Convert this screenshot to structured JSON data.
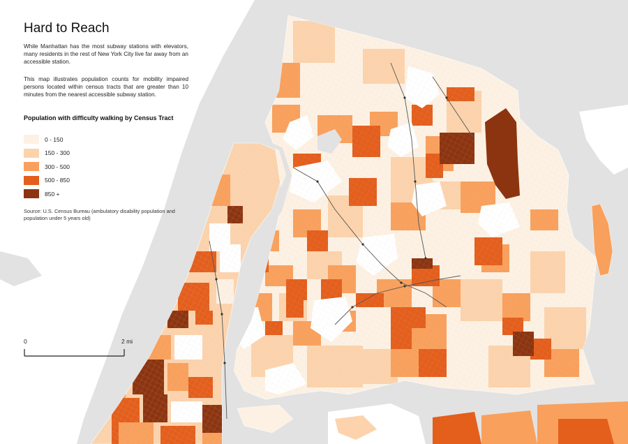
{
  "title": "Hard to Reach",
  "intro": "While Manhattan has the most subway stations with elevators, many residents in the rest of New York City live far away from an accessible station.",
  "description": "This map illustrates population counts for mobility impaired persons located within census tracts that are greater than 10 minutes from the nearest accessible subway station.",
  "legend": {
    "title": "Population with difficulty walking by Census Tract",
    "items": [
      {
        "label": "0 - 150",
        "color": "#fdf1e3"
      },
      {
        "label": "150 - 300",
        "color": "#fcd3ac"
      },
      {
        "label": "300 - 500",
        "color": "#f9a05c"
      },
      {
        "label": "500 - 850",
        "color": "#e45e1c"
      },
      {
        "label": "850 +",
        "color": "#8c3410"
      }
    ]
  },
  "source": "Source: U.S. Census Bureau (ambulatory disability population and population under 5 years old)",
  "scale": {
    "start": "0",
    "end": "2 mi"
  },
  "colors": {
    "water": "#e2e2e2",
    "land_outside": "#ffffff",
    "accessible_zone": "#ffffff"
  }
}
